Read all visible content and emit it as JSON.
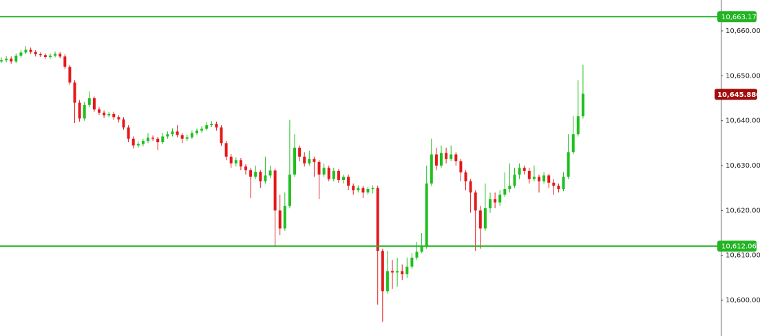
{
  "chart_data": {
    "type": "candlestick",
    "up_color": "#1fbf1f",
    "down_color": "#e3191b",
    "ylim": [
      10592.04,
      10666.89
    ],
    "yticks": [
      {
        "value": 10600,
        "label": "10,600.00"
      },
      {
        "value": 10610,
        "label": "10,610.00"
      },
      {
        "value": 10620,
        "label": "10,620.00"
      },
      {
        "value": 10630,
        "label": "10,630.00"
      },
      {
        "value": 10640,
        "label": "10,640.00"
      },
      {
        "value": 10650,
        "label": "10,650.00"
      },
      {
        "value": 10660,
        "label": "10,660.00"
      }
    ],
    "levels": [
      {
        "value": 10663.17,
        "label": "10,663.17",
        "color": "#22b422"
      },
      {
        "value": 10612.06,
        "label": "10,612.06",
        "color": "#22b422"
      }
    ],
    "last_price": {
      "value": 10645.88,
      "label": "10,645.880",
      "color": "#a50d0d"
    },
    "open": [
      10653.2,
      10653.5,
      10653.8,
      10653.2,
      10654.5,
      10655.2,
      10655.8,
      10655.3,
      10654.8,
      10654.6,
      10654.2,
      10654.5,
      10654.9,
      10654.3,
      10652.0,
      10648.5,
      10644.0,
      10640.5,
      10643.5,
      10645.0,
      10642.5,
      10641.8,
      10641.2,
      10641.5,
      10640.8,
      10640.3,
      10638.5,
      10636.0,
      10634.5,
      10634.8,
      10635.5,
      10636.2,
      10636.0,
      10635.2,
      10636.5,
      10637.0,
      10637.6,
      10636.8,
      10636.0,
      10636.3,
      10637.2,
      10637.8,
      10638.2,
      10639.0,
      10639.3,
      10638.5,
      10635.0,
      10632.0,
      10630.5,
      10631.2,
      10629.8,
      10629.0,
      10627.5,
      10628.6,
      10626.5,
      10627.8,
      10628.9,
      10620.0,
      10616.0,
      10621.0,
      10628.0,
      10634.0,
      10632.0,
      10630.5,
      10631.5,
      10630.8,
      10628.0,
      10629.5,
      10627.0,
      10628.8,
      10626.8,
      10627.5,
      10625.5,
      10624.5,
      10625.0,
      10624.0,
      10624.8,
      10625.0,
      10611.0,
      10602.0,
      10606.5,
      10606.2,
      10606.5,
      10605.8,
      10607.5,
      10609.5,
      10610.8,
      10612.0,
      10626.0,
      10632.5,
      10630.0,
      10632.8,
      10631.5,
      10632.5,
      10631.0,
      10628.5,
      10626.5,
      10624.0,
      10620.0,
      10616.0,
      10620.5,
      10622.5,
      10621.8,
      10623.5,
      10624.8,
      10625.5,
      10628.0,
      10629.5,
      10628.8,
      10627.0,
      10627.5,
      10626.5,
      10627.8,
      10626.2,
      10625.5,
      10624.8,
      10627.5,
      10633.0,
      10637.0,
      10641.0
    ],
    "high": [
      10654.1,
      10654.4,
      10654.3,
      10655.0,
      10655.8,
      10656.6,
      10656.3,
      10655.7,
      10655.2,
      10655.0,
      10655.0,
      10655.4,
      10655.3,
      10654.8,
      10652.4,
      10649.0,
      10644.6,
      10644.2,
      10646.5,
      10645.4,
      10643.0,
      10642.3,
      10642.0,
      10642.0,
      10641.2,
      10640.8,
      10639.0,
      10636.5,
      10635.4,
      10636.0,
      10637.2,
      10636.7,
      10636.4,
      10637.2,
      10637.6,
      10638.3,
      10639.0,
      10637.2,
      10636.9,
      10637.8,
      10638.3,
      10638.8,
      10639.7,
      10639.9,
      10639.8,
      10639.0,
      10635.5,
      10632.6,
      10631.8,
      10631.7,
      10630.3,
      10629.5,
      10630.0,
      10629.0,
      10632.0,
      10630.0,
      10629.3,
      10623.5,
      10624.0,
      10640.2,
      10637.0,
      10634.5,
      10633.0,
      10633.3,
      10632.0,
      10631.2,
      10630.5,
      10630.0,
      10629.5,
      10629.2,
      10628.0,
      10628.0,
      10626.0,
      10625.6,
      10625.5,
      10625.3,
      10625.6,
      10625.5,
      10611.5,
      10611.0,
      10609.0,
      10609.5,
      10608.0,
      10609.5,
      10610.5,
      10613.0,
      10615.0,
      10630.0,
      10636.0,
      10634.0,
      10634.5,
      10634.0,
      10634.5,
      10633.0,
      10631.5,
      10629.0,
      10627.0,
      10624.5,
      10621.0,
      10626.0,
      10624.0,
      10624.0,
      10624.5,
      10628.5,
      10630.5,
      10629.5,
      10630.5,
      10630.0,
      10629.5,
      10630.0,
      10628.0,
      10628.5,
      10628.2,
      10627.0,
      10626.0,
      10628.5,
      10637.0,
      10641.0,
      10649.0,
      10652.5
    ],
    "low": [
      10652.8,
      10653.0,
      10652.7,
      10652.8,
      10654.0,
      10654.8,
      10654.9,
      10654.3,
      10654.2,
      10653.8,
      10653.8,
      10654.1,
      10653.9,
      10651.5,
      10648.0,
      10639.5,
      10639.8,
      10640.0,
      10643.0,
      10642.0,
      10641.3,
      10640.6,
      10640.8,
      10640.2,
      10639.6,
      10638.0,
      10635.2,
      10633.8,
      10634.0,
      10634.3,
      10635.0,
      10635.5,
      10633.5,
      10634.8,
      10636.0,
      10636.5,
      10636.3,
      10635.0,
      10635.5,
      10635.9,
      10636.8,
      10637.3,
      10637.8,
      10638.6,
      10637.8,
      10634.4,
      10631.2,
      10629.5,
      10629.8,
      10629.0,
      10628.0,
      10622.8,
      10627.0,
      10625.0,
      10626.0,
      10627.2,
      10612.0,
      10614.5,
      10615.5,
      10620.5,
      10627.5,
      10631.0,
      10629.8,
      10630.0,
      10627.5,
      10622.5,
      10627.5,
      10626.5,
      10626.5,
      10626.2,
      10626.0,
      10624.5,
      10623.5,
      10624.0,
      10622.8,
      10623.5,
      10623.8,
      10599.0,
      10595.2,
      10601.5,
      10602.5,
      10603.0,
      10604.5,
      10605.0,
      10607.0,
      10609.0,
      10610.5,
      10611.5,
      10625.5,
      10629.0,
      10629.5,
      10630.5,
      10631.0,
      10630.0,
      10626.5,
      10624.5,
      10619.5,
      10611.0,
      10611.5,
      10615.5,
      10619.5,
      10620.5,
      10621.0,
      10623.0,
      10624.0,
      10625.0,
      10627.0,
      10628.0,
      10626.0,
      10626.5,
      10624.0,
      10626.0,
      10625.0,
      10623.5,
      10624.0,
      10624.3,
      10627.0,
      10632.5,
      10636.5,
      10640.5
    ],
    "close": [
      10653.5,
      10653.8,
      10653.2,
      10654.5,
      10655.2,
      10655.8,
      10655.3,
      10654.8,
      10654.6,
      10654.2,
      10654.5,
      10654.9,
      10654.3,
      10652.0,
      10648.5,
      10644.0,
      10640.5,
      10643.5,
      10645.0,
      10642.5,
      10641.8,
      10641.2,
      10641.5,
      10640.8,
      10640.3,
      10638.5,
      10636.0,
      10634.5,
      10634.8,
      10635.5,
      10636.2,
      10636.0,
      10635.2,
      10636.5,
      10637.0,
      10637.6,
      10636.8,
      10636.0,
      10636.3,
      10637.2,
      10637.8,
      10638.2,
      10639.0,
      10639.3,
      10638.5,
      10635.0,
      10632.0,
      10630.5,
      10631.2,
      10629.8,
      10629.0,
      10627.5,
      10628.6,
      10626.5,
      10627.8,
      10628.9,
      10620.0,
      10616.0,
      10621.0,
      10628.0,
      10634.0,
      10632.0,
      10630.5,
      10631.5,
      10630.8,
      10628.0,
      10629.5,
      10627.0,
      10628.8,
      10626.8,
      10627.5,
      10625.5,
      10624.5,
      10625.0,
      10624.0,
      10624.8,
      10625.0,
      10611.0,
      10602.0,
      10606.5,
      10606.2,
      10606.5,
      10605.8,
      10607.5,
      10609.5,
      10610.8,
      10612.0,
      10626.0,
      10632.5,
      10630.0,
      10632.8,
      10631.5,
      10632.5,
      10631.0,
      10628.5,
      10626.5,
      10624.0,
      10620.0,
      10616.0,
      10620.5,
      10622.5,
      10621.8,
      10623.5,
      10624.8,
      10625.5,
      10628.0,
      10629.5,
      10628.8,
      10627.0,
      10627.5,
      10626.5,
      10627.8,
      10626.2,
      10625.5,
      10624.8,
      10627.5,
      10633.0,
      10637.0,
      10641.0,
      10646.0
    ]
  }
}
